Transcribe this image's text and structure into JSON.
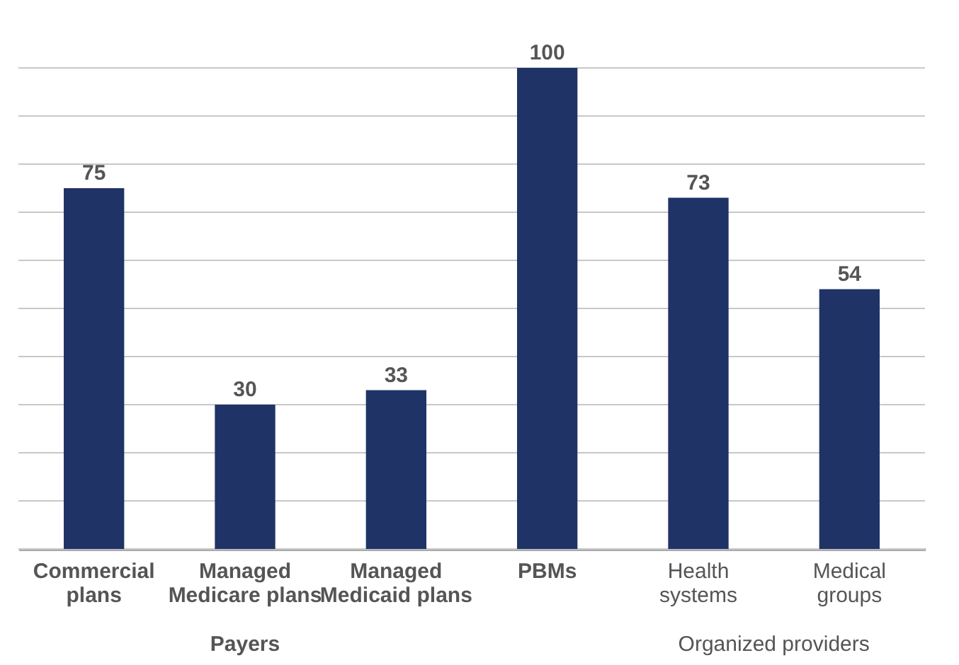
{
  "chart_data": {
    "type": "bar",
    "categories": [
      "Commercial plans",
      "Managed Medicare plans",
      "Managed Medicaid plans",
      "PBMs",
      "Health systems",
      "Medical groups"
    ],
    "values": [
      75,
      30,
      33,
      100,
      73,
      54
    ],
    "color": "#1f3366",
    "ylim": [
      0,
      100
    ],
    "yticks": [
      0,
      {
        "value": 10,
        "label": null
      },
      {
        "value": 20,
        "label": null
      },
      {
        "value": 30,
        "label": null
      },
      {
        "value": 40,
        "label": null
      },
      {
        "value": 50,
        "label": null
      },
      {
        "value": 60,
        "label": null
      },
      {
        "value": 70,
        "label": null
      },
      {
        "value": 80,
        "label": null
      },
      {
        "value": 90,
        "label": null
      },
      {
        "value": 100,
        "label": null
      }
    ],
    "grid": "y",
    "tick_labels": "x",
    "data_labels": true,
    "annotations": [
      "Payers",
      "Organized providers"
    ]
  }
}
